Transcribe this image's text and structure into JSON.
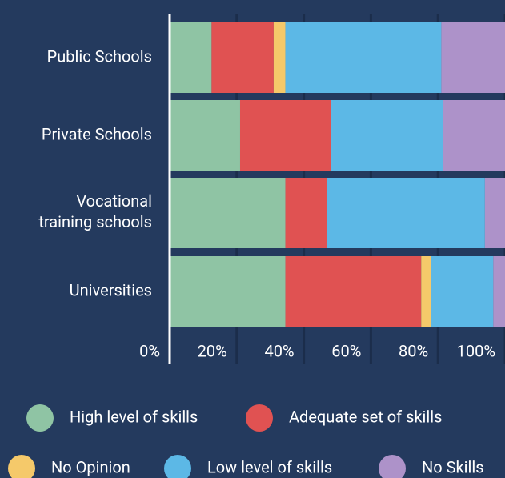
{
  "chart_data": {
    "type": "stacked_barh",
    "categories": [
      "Public Schools",
      "Private Schools",
      "Vocational training schools",
      "Universities"
    ],
    "series": [
      {
        "name": "High level of skills",
        "color": "#8fc4a4",
        "values": [
          12.5,
          21,
          34.5,
          34.5
        ]
      },
      {
        "name": "Adequate set of skills",
        "color": "#e05252",
        "values": [
          18.5,
          27,
          12.5,
          40.5
        ]
      },
      {
        "name": "No Opinion",
        "color": "#f5c96a",
        "values": [
          3.5,
          0,
          0,
          3
        ]
      },
      {
        "name": "Low level of skills",
        "color": "#5cb8e6",
        "values": [
          46.5,
          33.5,
          47,
          18.5
        ]
      },
      {
        "name": "No Skills",
        "color": "#ad92c9",
        "values": [
          19,
          18.5,
          6,
          3.5
        ]
      }
    ],
    "xlim": [
      0,
      100
    ],
    "xticks": [
      {
        "value": 0,
        "label": "0%"
      },
      {
        "value": 20,
        "label": "20%"
      },
      {
        "value": 40,
        "label": "40%"
      },
      {
        "value": 60,
        "label": "60%"
      },
      {
        "value": 80,
        "label": "80%"
      },
      {
        "value": 100,
        "label": "100%"
      }
    ],
    "grid": true
  }
}
